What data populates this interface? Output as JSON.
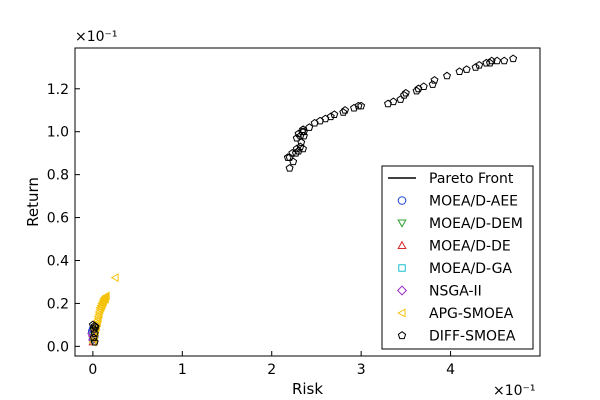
{
  "chart_data": {
    "type": "scatter",
    "xlabel": "Risk",
    "ylabel": "Return",
    "x_multiplier_label": "×10⁻¹",
    "y_multiplier_label": "×10⁻¹",
    "xlim": [
      -0.2,
      5.0
    ],
    "ylim": [
      -0.045,
      1.39
    ],
    "xticks": [
      0,
      1,
      2,
      3,
      4
    ],
    "xtick_labels": [
      "0",
      "1",
      "2",
      "3",
      "4"
    ],
    "yticks": [
      0.0,
      0.2,
      0.4,
      0.6,
      0.8,
      1.0,
      1.2
    ],
    "ytick_labels": [
      "0.0",
      "0.2",
      "0.4",
      "0.6",
      "0.8",
      "1.0",
      "1.2"
    ],
    "grid": false,
    "legend_position": "lower-right",
    "series": [
      {
        "name": "Pareto Front",
        "marker": "line",
        "color": "#000000",
        "points": []
      },
      {
        "name": "MOEA/D-AEE",
        "marker": "circle",
        "color": "#1f3fd6",
        "points": [
          [
            0.0,
            0.04
          ],
          [
            0.01,
            0.06
          ],
          [
            0.0,
            0.08
          ],
          [
            0.02,
            0.05
          ],
          [
            -0.01,
            0.07
          ]
        ]
      },
      {
        "name": "MOEA/D-DEM",
        "marker": "triangle-down",
        "color": "#2ca02c",
        "points": [
          [
            0.0,
            0.05
          ],
          [
            0.01,
            0.07
          ],
          [
            0.0,
            0.03
          ]
        ]
      },
      {
        "name": "MOEA/D-DE",
        "marker": "triangle-up",
        "color": "#d62728",
        "points": [
          [
            0.0,
            0.06
          ],
          [
            0.01,
            0.04
          ],
          [
            0.0,
            0.02
          ]
        ]
      },
      {
        "name": "MOEA/D-GA",
        "marker": "square",
        "color": "#17becf",
        "points": [
          [
            0.0,
            0.05
          ],
          [
            0.01,
            0.03
          ]
        ]
      },
      {
        "name": "NSGA-II",
        "marker": "diamond",
        "color": "#9b30c8",
        "points": [
          [
            0.0,
            0.03
          ],
          [
            0.0,
            0.05
          ],
          [
            0.01,
            0.04
          ],
          [
            -0.01,
            0.06
          ]
        ]
      },
      {
        "name": "APG-SMOEA",
        "marker": "triangle-left",
        "color": "#f5c20b",
        "points": [
          [
            0.0,
            0.02
          ],
          [
            0.01,
            0.04
          ],
          [
            0.02,
            0.06
          ],
          [
            0.03,
            0.08
          ],
          [
            0.04,
            0.1
          ],
          [
            0.05,
            0.12
          ],
          [
            0.06,
            0.14
          ],
          [
            0.07,
            0.16
          ],
          [
            0.08,
            0.18
          ],
          [
            0.09,
            0.19
          ],
          [
            0.1,
            0.2
          ],
          [
            0.11,
            0.21
          ],
          [
            0.12,
            0.22
          ],
          [
            0.13,
            0.225
          ],
          [
            0.14,
            0.23
          ],
          [
            0.15,
            0.235
          ],
          [
            0.03,
            0.07
          ],
          [
            0.05,
            0.11
          ],
          [
            0.07,
            0.15
          ],
          [
            0.09,
            0.18
          ],
          [
            0.11,
            0.2
          ],
          [
            0.13,
            0.22
          ],
          [
            0.02,
            0.03
          ],
          [
            0.04,
            0.09
          ],
          [
            0.06,
            0.13
          ],
          [
            0.08,
            0.17
          ],
          [
            0.1,
            0.19
          ],
          [
            0.12,
            0.21
          ],
          [
            0.14,
            0.22
          ],
          [
            0.25,
            0.32
          ]
        ]
      },
      {
        "name": "DIFF-SMOEA",
        "marker": "pentagon",
        "color": "#000000",
        "points": [
          [
            0.02,
            0.02
          ],
          [
            0.01,
            0.04
          ],
          [
            0.02,
            0.06
          ],
          [
            0.01,
            0.08
          ],
          [
            0.03,
            0.09
          ],
          [
            0.0,
            0.1
          ],
          [
            0.02,
            0.095
          ],
          [
            2.2,
            0.83
          ],
          [
            2.18,
            0.88
          ],
          [
            2.2,
            0.88
          ],
          [
            2.24,
            0.86
          ],
          [
            2.23,
            0.9
          ],
          [
            2.27,
            0.9
          ],
          [
            2.28,
            0.92
          ],
          [
            2.3,
            0.91
          ],
          [
            2.32,
            0.93
          ],
          [
            2.33,
            0.95
          ],
          [
            2.35,
            0.92
          ],
          [
            2.28,
            0.97
          ],
          [
            2.3,
            0.99
          ],
          [
            2.32,
            0.98
          ],
          [
            2.34,
            1.0
          ],
          [
            2.35,
            1.01
          ],
          [
            2.36,
            1.0
          ],
          [
            2.36,
            0.98
          ],
          [
            2.42,
            1.02
          ],
          [
            2.48,
            1.04
          ],
          [
            2.54,
            1.05
          ],
          [
            2.6,
            1.06
          ],
          [
            2.66,
            1.07
          ],
          [
            2.7,
            1.08
          ],
          [
            2.8,
            1.09
          ],
          [
            2.82,
            1.1
          ],
          [
            2.92,
            1.11
          ],
          [
            2.97,
            1.12
          ],
          [
            3.0,
            1.12
          ],
          [
            3.3,
            1.13
          ],
          [
            3.36,
            1.14
          ],
          [
            3.44,
            1.15
          ],
          [
            3.48,
            1.17
          ],
          [
            3.5,
            1.18
          ],
          [
            3.62,
            1.19
          ],
          [
            3.64,
            1.2
          ],
          [
            3.7,
            1.21
          ],
          [
            3.8,
            1.22
          ],
          [
            3.82,
            1.24
          ],
          [
            3.96,
            1.26
          ],
          [
            4.1,
            1.28
          ],
          [
            4.18,
            1.29
          ],
          [
            4.28,
            1.3
          ],
          [
            4.32,
            1.31
          ],
          [
            4.4,
            1.32
          ],
          [
            4.44,
            1.32
          ],
          [
            4.46,
            1.33
          ],
          [
            4.52,
            1.33
          ],
          [
            4.6,
            1.33
          ],
          [
            4.7,
            1.34
          ]
        ]
      }
    ]
  }
}
